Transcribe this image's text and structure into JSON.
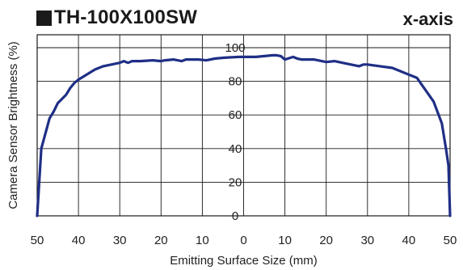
{
  "title": "TH-100X100SW",
  "subtitle": "x-axis",
  "chart_data": {
    "type": "line",
    "title": "TH-100X100SW",
    "subtitle": "x-axis",
    "xlabel": "Emitting Surface Size (mm)",
    "ylabel": "Camera Sensor Brightness (%)",
    "xlim": [
      -50,
      50
    ],
    "ylim": [
      0,
      100
    ],
    "x_tick_labels": [
      "50",
      "40",
      "30",
      "20",
      "10",
      "0",
      "10",
      "20",
      "30",
      "40",
      "50"
    ],
    "y_tick_labels": [
      "0",
      "20",
      "40",
      "60",
      "80",
      "100"
    ],
    "grid": true,
    "line_color": "#1f2f86",
    "series": [
      {
        "x": [
          -50,
          -49,
          -47,
          -46,
          -45,
          -43,
          -42,
          -41,
          -40,
          -38,
          -36,
          -34,
          -32,
          -30,
          -29,
          -28,
          -27,
          -25,
          -22,
          -20,
          -19,
          -17,
          -15,
          -14,
          -13,
          -11,
          -9,
          -7,
          -5,
          -3,
          -1,
          0,
          1,
          3,
          5,
          7,
          8,
          9,
          10,
          12,
          13,
          14,
          15,
          17,
          20,
          22,
          25,
          28,
          29,
          30,
          33,
          36,
          38,
          40,
          42,
          44,
          46,
          48,
          49,
          49.6,
          50
        ],
        "y": [
          0,
          40,
          58,
          62,
          67,
          72,
          76,
          79,
          81,
          84,
          87,
          89,
          90,
          91,
          92,
          91,
          92,
          92,
          92.5,
          92,
          92.5,
          93,
          92,
          93,
          93,
          93,
          92.5,
          93.5,
          94,
          94.3,
          94.5,
          94.5,
          94.5,
          94.5,
          95,
          95.5,
          95.5,
          95,
          93,
          94.5,
          93.5,
          93,
          93,
          93,
          91.5,
          92,
          90.5,
          89,
          90,
          90,
          89,
          88,
          86,
          84,
          82,
          75,
          68,
          55,
          40,
          30,
          0
        ]
      }
    ]
  }
}
